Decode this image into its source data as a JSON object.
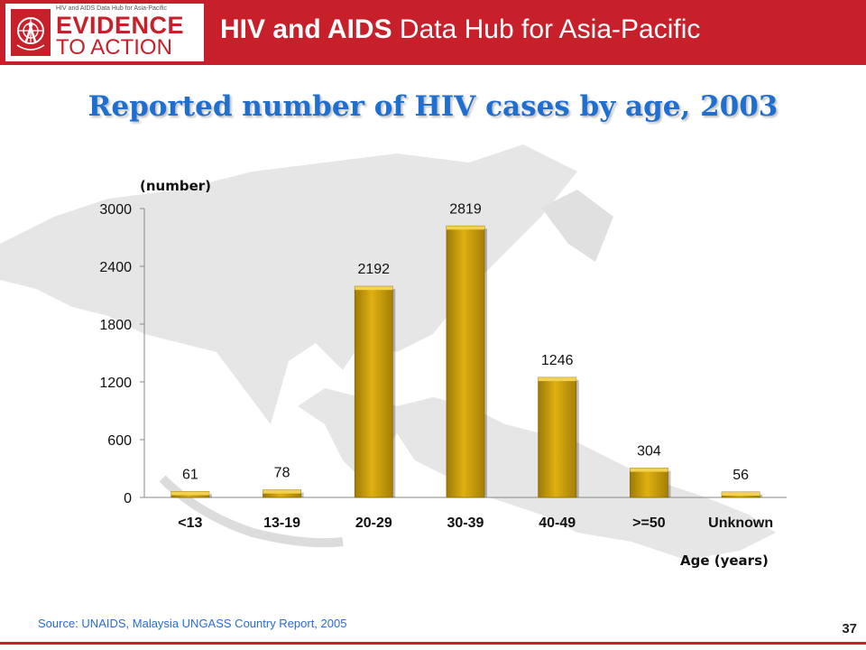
{
  "header": {
    "logo_small": "HIV and AIDS Data Hub for Asia-Pacific",
    "logo_line1": "EVIDENCE",
    "logo_line2": "TO ACTION",
    "title_bold": "HIV and AIDS",
    "title_rest": " Data Hub for Asia-Pacific"
  },
  "colors": {
    "brand_red": "#c8202a",
    "title_blue": "#1f6fd1",
    "bar_gold": "#d4a40a"
  },
  "chart_data": {
    "type": "bar",
    "title": "Reported number of HIV cases by age, 2003",
    "ylabel": "(number)",
    "xlabel": "Age (years)",
    "categories": [
      "<13",
      "13-19",
      "20-29",
      "30-39",
      "40-49",
      ">=50",
      "Unknown"
    ],
    "values": [
      61,
      78,
      2192,
      2819,
      1246,
      304,
      56
    ],
    "ylim": [
      0,
      3000
    ],
    "yticks": [
      0,
      600,
      1200,
      1800,
      2400,
      3000
    ],
    "grid": false,
    "legend": "none"
  },
  "footer": {
    "source": "Source: UNAIDS, Malaysia UNGASS Country Report, 2005",
    "page_number": "37"
  }
}
